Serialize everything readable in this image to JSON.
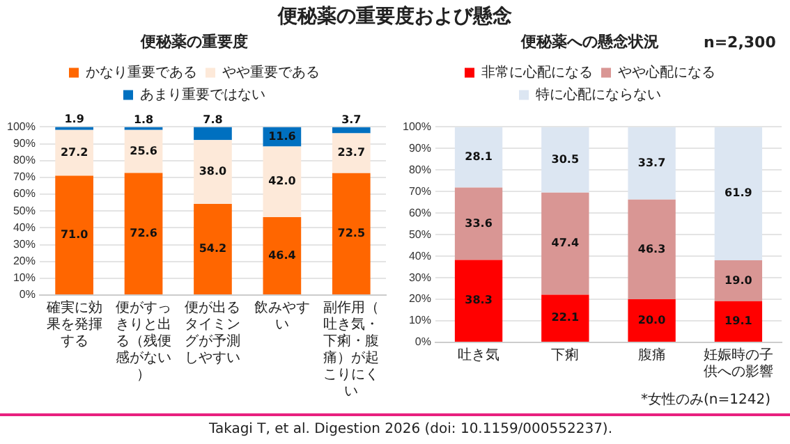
{
  "chart_data": [
    {
      "type": "bar",
      "title": "便秘薬の重要度",
      "stacked": true,
      "grid": "y",
      "legend": "top",
      "categories": [
        "確実に効果を発揮する",
        "便がすっきりと出る（残便感がない）",
        "便が出るタイミングが予測しやすい",
        "飲みやすい",
        "副作用（吐き気・下痢・腹痛）が起こりにくい"
      ],
      "series": [
        {
          "name": "かなり重要である",
          "color": "#ff6600",
          "values": [
            71.0,
            72.6,
            54.2,
            46.4,
            72.5
          ],
          "value_labels": [
            "71.0",
            "72.6",
            "54.2",
            "46.4",
            "72.5"
          ]
        },
        {
          "name": "やや重要である",
          "color": "#fde9d9",
          "values": [
            27.2,
            25.6,
            38.0,
            42.0,
            23.7
          ],
          "value_labels": [
            "27.2",
            "25.6",
            "38.0",
            "42.0",
            "23.7"
          ]
        },
        {
          "name": "あまり重要ではない",
          "color": "#0070c0",
          "values": [
            1.9,
            1.8,
            7.8,
            11.6,
            3.7
          ],
          "value_labels": [
            "1.9",
            "1.8",
            "7.8",
            "11.6",
            "3.7"
          ]
        }
      ],
      "ylim": [
        0,
        100
      ],
      "yticks": [
        {
          "value": 0,
          "label": "0%"
        },
        {
          "value": 10,
          "label": "10%"
        },
        {
          "value": 20,
          "label": "20%"
        },
        {
          "value": 30,
          "label": "30%"
        },
        {
          "value": 40,
          "label": "40%"
        },
        {
          "value": 50,
          "label": "50%"
        },
        {
          "value": 60,
          "label": "60%"
        },
        {
          "value": 70,
          "label": "70%"
        },
        {
          "value": 80,
          "label": "80%"
        },
        {
          "value": 90,
          "label": "90%"
        },
        {
          "value": 100,
          "label": "100%"
        }
      ],
      "annotations": [
        "便秘薬の重要度および懸念"
      ]
    },
    {
      "type": "bar",
      "title": "便秘薬への懸念状況",
      "stacked": true,
      "grid": "y",
      "legend": "top",
      "categories": [
        "吐き気",
        "下痢",
        "腹痛",
        "妊娠時の子供への影響"
      ],
      "series": [
        {
          "name": "非常に心配になる",
          "color": "#ff0000",
          "values": [
            38.3,
            22.1,
            20.0,
            19.1
          ],
          "value_labels": [
            "38.3",
            "22.1",
            "20.0",
            "19.1"
          ]
        },
        {
          "name": "やや心配になる",
          "color": "#d99694",
          "values": [
            33.6,
            47.4,
            46.3,
            19.0
          ],
          "value_labels": [
            "33.6",
            "47.4",
            "46.3",
            "19.0"
          ]
        },
        {
          "name": "特に心配にならない",
          "color": "#dce6f2",
          "values": [
            28.1,
            30.5,
            33.7,
            61.9
          ],
          "value_labels": [
            "28.1",
            "30.5",
            "33.7",
            "61.9"
          ]
        }
      ],
      "ylim": [
        0,
        100
      ],
      "yticks": [
        {
          "value": 0,
          "label": "0%"
        },
        {
          "value": 10,
          "label": "10%"
        },
        {
          "value": 20,
          "label": "20%"
        },
        {
          "value": 30,
          "label": "30%"
        },
        {
          "value": 40,
          "label": "40%"
        },
        {
          "value": 50,
          "label": "50%"
        },
        {
          "value": 60,
          "label": "60%"
        },
        {
          "value": 70,
          "label": "70%"
        },
        {
          "value": 80,
          "label": "80%"
        },
        {
          "value": 90,
          "label": "90%"
        },
        {
          "value": 100,
          "label": "100%"
        }
      ],
      "annotations": [
        "n=2,300",
        "*女性のみ(n=1242)",
        "Takagi T, et al. Digestion 2026 (doi: 10.1159/000552237)."
      ]
    }
  ]
}
